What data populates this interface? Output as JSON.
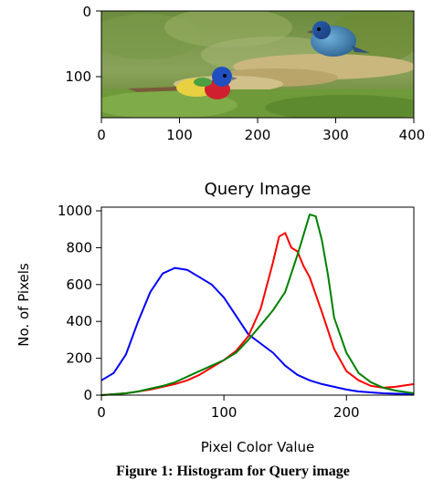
{
  "chart_data": [
    {
      "type": "image",
      "x_ticks": [
        "0",
        "100",
        "200",
        "300",
        "400"
      ],
      "y_ticks": [
        "0",
        "100"
      ],
      "xlim": [
        0,
        400
      ],
      "ylim": [
        0,
        165
      ],
      "image_description": "photo of two small colorful birds on a seed head"
    },
    {
      "type": "line",
      "title": "Query Image",
      "xlabel": "Pixel Color Value",
      "ylabel": "No. of Pixels",
      "xlim": [
        0,
        255
      ],
      "ylim": [
        0,
        1020
      ],
      "x_ticks": [
        "0",
        "100",
        "200"
      ],
      "y_ticks": [
        "0",
        "200",
        "400",
        "600",
        "800",
        "1000"
      ],
      "grid": false,
      "series": [
        {
          "color": "#0000ff",
          "x": [
            0,
            10,
            20,
            30,
            40,
            50,
            60,
            70,
            80,
            90,
            100,
            110,
            120,
            130,
            140,
            150,
            160,
            170,
            180,
            190,
            200,
            210,
            220,
            230,
            240,
            255
          ],
          "y": [
            80,
            120,
            220,
            400,
            560,
            660,
            690,
            680,
            640,
            600,
            530,
            430,
            330,
            280,
            230,
            160,
            110,
            80,
            60,
            45,
            30,
            20,
            15,
            10,
            8,
            5
          ]
        },
        {
          "color": "#ff0000",
          "x": [
            0,
            10,
            20,
            30,
            40,
            50,
            60,
            70,
            80,
            90,
            100,
            110,
            120,
            130,
            140,
            145,
            150,
            155,
            160,
            165,
            170,
            180,
            190,
            200,
            210,
            220,
            230,
            240,
            255
          ],
          "y": [
            0,
            5,
            10,
            20,
            30,
            45,
            60,
            80,
            110,
            150,
            190,
            240,
            320,
            470,
            720,
            860,
            880,
            800,
            780,
            700,
            640,
            450,
            250,
            130,
            80,
            50,
            40,
            45,
            60
          ]
        },
        {
          "color": "#008000",
          "x": [
            0,
            10,
            20,
            30,
            40,
            50,
            60,
            70,
            80,
            90,
            100,
            110,
            120,
            130,
            140,
            150,
            160,
            165,
            170,
            175,
            180,
            185,
            190,
            200,
            210,
            220,
            230,
            240,
            255
          ],
          "y": [
            0,
            5,
            10,
            20,
            35,
            50,
            70,
            100,
            130,
            160,
            190,
            230,
            300,
            380,
            460,
            560,
            760,
            870,
            980,
            970,
            840,
            650,
            420,
            230,
            120,
            70,
            40,
            25,
            10
          ]
        }
      ]
    }
  ],
  "caption": "Figure 1: Histogram for Query image"
}
